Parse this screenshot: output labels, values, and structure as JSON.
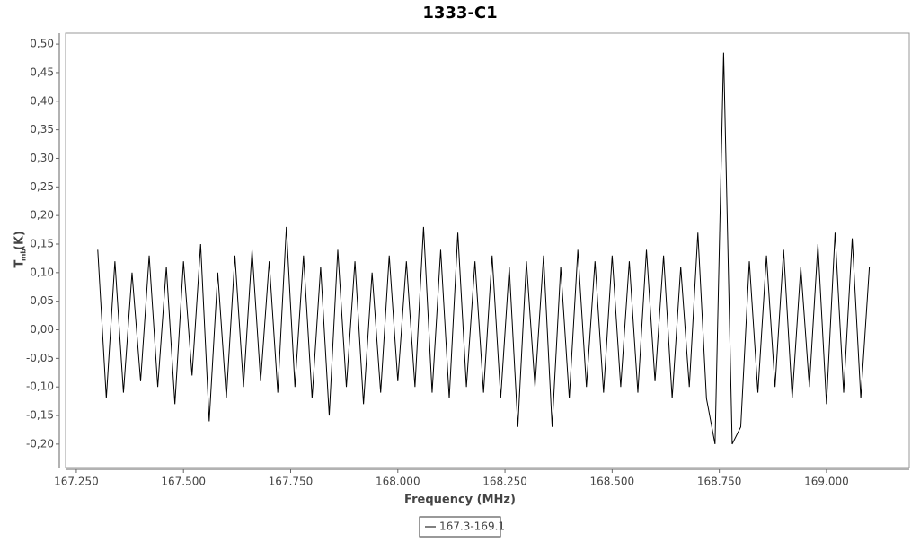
{
  "chart_data": {
    "type": "line",
    "title": "1333-C1",
    "xlabel": "Frequency (MHz)",
    "ylabel": {
      "main": "T",
      "sub": "mb",
      "unit": "(K)"
    },
    "x": [
      167.3,
      167.32,
      167.34,
      167.36,
      167.38,
      167.4,
      167.42,
      167.44,
      167.46,
      167.48,
      167.5,
      167.52,
      167.54,
      167.56,
      167.58,
      167.6,
      167.62,
      167.64,
      167.66,
      167.68,
      167.7,
      167.72,
      167.74,
      167.76,
      167.78,
      167.8,
      167.82,
      167.84,
      167.86,
      167.88,
      167.9,
      167.92,
      167.94,
      167.96,
      167.98,
      168,
      168.02,
      168.04,
      168.06,
      168.08,
      168.1,
      168.12,
      168.14,
      168.16,
      168.18,
      168.2,
      168.22,
      168.24,
      168.26,
      168.28,
      168.3,
      168.32,
      168.34,
      168.36,
      168.38,
      168.4,
      168.42,
      168.44,
      168.46,
      168.48,
      168.5,
      168.52,
      168.54,
      168.56,
      168.58,
      168.6,
      168.62,
      168.64,
      168.66,
      168.68,
      168.7,
      168.72,
      168.74,
      168.76,
      168.78,
      168.8,
      168.82,
      168.84,
      168.86,
      168.88,
      168.9,
      168.92,
      168.94,
      168.96,
      168.98,
      169,
      169.02,
      169.04,
      169.06,
      169.08,
      169.1
    ],
    "series": [
      {
        "name": "167.3-169.1",
        "color": "#000000",
        "values": [
          0.14,
          -0.12,
          0.12,
          -0.11,
          0.1,
          -0.09,
          0.13,
          -0.1,
          0.11,
          -0.13,
          0.12,
          -0.08,
          0.15,
          -0.16,
          0.1,
          -0.12,
          0.13,
          -0.1,
          0.14,
          -0.09,
          0.12,
          -0.11,
          0.18,
          -0.1,
          0.13,
          -0.12,
          0.11,
          -0.15,
          0.14,
          -0.1,
          0.12,
          -0.13,
          0.1,
          -0.11,
          0.13,
          -0.09,
          0.12,
          -0.1,
          0.18,
          -0.11,
          0.14,
          -0.12,
          0.17,
          -0.1,
          0.12,
          -0.11,
          0.13,
          -0.12,
          0.11,
          -0.17,
          0.12,
          -0.1,
          0.13,
          -0.17,
          0.11,
          -0.12,
          0.14,
          -0.1,
          0.12,
          -0.11,
          0.13,
          -0.1,
          0.12,
          -0.11,
          0.14,
          -0.09,
          0.13,
          -0.12,
          0.11,
          -0.1,
          0.17,
          -0.12,
          -0.2,
          0.485,
          -0.2,
          -0.17,
          0.12,
          -0.11,
          0.13,
          -0.1,
          0.14,
          -0.12,
          0.11,
          -0.1,
          0.15,
          -0.13,
          0.17,
          -0.11,
          0.16,
          -0.12,
          0.11
        ]
      }
    ],
    "xlim": [
      167.225,
      169.193
    ],
    "ylim": [
      -0.241,
      0.519
    ],
    "xticks": [
      {
        "value": 167.25,
        "label": "167.250"
      },
      {
        "value": 167.5,
        "label": "167.500"
      },
      {
        "value": 167.75,
        "label": "167.750"
      },
      {
        "value": 168,
        "label": "168.000"
      },
      {
        "value": 168.25,
        "label": "168.250"
      },
      {
        "value": 168.5,
        "label": "168.500"
      },
      {
        "value": 168.75,
        "label": "168.750"
      },
      {
        "value": 169,
        "label": "169.000"
      }
    ],
    "yticks": [
      {
        "value": -0.2,
        "label": "-0,20"
      },
      {
        "value": -0.15,
        "label": "-0,15"
      },
      {
        "value": -0.1,
        "label": "-0,10"
      },
      {
        "value": -0.05,
        "label": "-0,05"
      },
      {
        "value": 0,
        "label": "0,00"
      },
      {
        "value": 0.05,
        "label": "0,05"
      },
      {
        "value": 0.1,
        "label": "0,10"
      },
      {
        "value": 0.15,
        "label": "0,15"
      },
      {
        "value": 0.2,
        "label": "0,20"
      },
      {
        "value": 0.25,
        "label": "0,25"
      },
      {
        "value": 0.3,
        "label": "0,30"
      },
      {
        "value": 0.35,
        "label": "0,35"
      },
      {
        "value": 0.4,
        "label": "0,40"
      },
      {
        "value": 0.45,
        "label": "0,45"
      },
      {
        "value": 0.5,
        "label": "0,50"
      }
    ],
    "legend": "bottom"
  }
}
